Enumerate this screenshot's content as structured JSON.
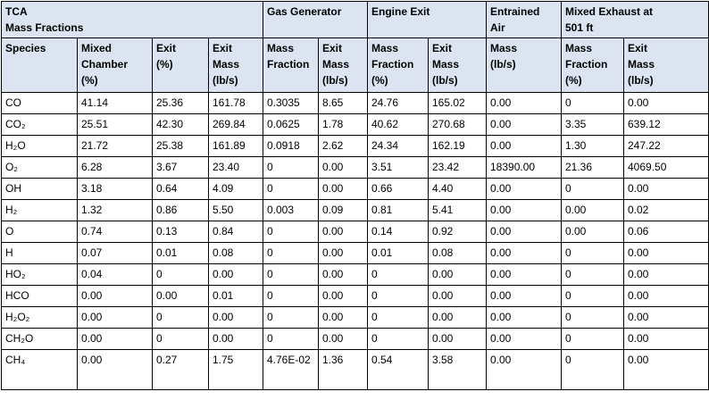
{
  "table": {
    "header_bg": "#DBE4F0",
    "border_color": "#000000",
    "groups": [
      {
        "label": "TCA\nMass Fractions",
        "colspan": 4
      },
      {
        "label": "Gas Generator",
        "colspan": 2
      },
      {
        "label": "Engine Exit",
        "colspan": 2
      },
      {
        "label": "Entrained\nAir",
        "colspan": 1
      },
      {
        "label": "Mixed Exhaust at\n501 ft",
        "colspan": 2
      }
    ],
    "columns": [
      "Species",
      "Mixed\nChamber\n(%)",
      "Exit\n(%)",
      "Exit\nMass\n(lb/s)",
      "Mass\nFraction",
      "Exit\nMass\n(lb/s)",
      "Mass\nFraction\n(%)",
      "Exit\nMass\n(lb/s)",
      "Mass\n(lb/s)",
      "Mass\nFraction\n(%)",
      "Exit\nMass\n(lb/s)"
    ],
    "rows": [
      [
        "CO",
        "41.14",
        "25.36",
        "161.78",
        "0.3035",
        "8.65",
        "24.76",
        "165.02",
        "0.00",
        "0",
        "0.00"
      ],
      [
        "CO₂",
        "25.51",
        "42.30",
        "269.84",
        "0.0625",
        "1.78",
        "40.62",
        "270.68",
        "0.00",
        "3.35",
        "639.12"
      ],
      [
        "H₂O",
        "21.72",
        "25.38",
        "161.89",
        "0.0918",
        "2.62",
        "24.34",
        "162.19",
        "0.00",
        "1.30",
        "247.22"
      ],
      [
        "O₂",
        "6.28",
        "3.67",
        "23.40",
        "0",
        "0.00",
        "3.51",
        "23.42",
        "18390.00",
        "21.36",
        "4069.50"
      ],
      [
        "OH",
        "3.18",
        "0.64",
        "4.09",
        "0",
        "0.00",
        "0.66",
        "4.40",
        "0.00",
        "0",
        "0.00"
      ],
      [
        "H₂",
        "1.32",
        "0.86",
        "5.50",
        "0.003",
        "0.09",
        "0.81",
        "5.41",
        "0.00",
        "0.00",
        "0.02"
      ],
      [
        "O",
        "0.74",
        "0.13",
        "0.84",
        "0",
        "0.00",
        "0.14",
        "0.92",
        "0.00",
        "0.00",
        "0.06"
      ],
      [
        "H",
        "0.07",
        "0.01",
        "0.08",
        "0",
        "0.00",
        "0.01",
        "0.08",
        "0.00",
        "0",
        "0.00"
      ],
      [
        "HO₂",
        "0.04",
        "0",
        "0.00",
        "0",
        "0.00",
        "0",
        "0.00",
        "0.00",
        "0",
        "0.00"
      ],
      [
        "HCO",
        "0.00",
        "0.00",
        "0.01",
        "0",
        "0.00",
        "0",
        "0.00",
        "0.00",
        "0",
        "0.00"
      ],
      [
        "H₂O₂",
        "0.00",
        "0",
        "0.00",
        "0",
        "0.00",
        "0",
        "0.00",
        "0.00",
        "0",
        "0.00"
      ],
      [
        "CH₂O",
        "0.00",
        "0",
        "0.00",
        "0",
        "0.00",
        "0",
        "0.00",
        "0.00",
        "0",
        "0.00"
      ],
      [
        "CH₄",
        "0.00",
        "0.27",
        "1.75",
        "4.76E-02",
        "1.36",
        "0.54",
        "3.58",
        "0.00",
        "0",
        "0.00"
      ]
    ]
  }
}
